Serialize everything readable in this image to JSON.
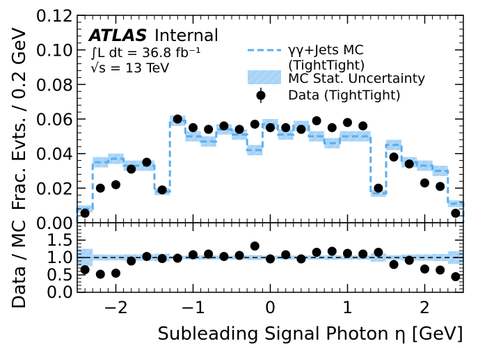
{
  "chart_data": [
    {
      "type": "line",
      "name": "main",
      "xlim": [
        -2.5,
        2.5
      ],
      "ylim": [
        0,
        0.12
      ],
      "yticks": [
        "0.00",
        "0.02",
        "0.04",
        "0.06",
        "0.08",
        "0.10",
        "0.12"
      ],
      "ylabel": "Frac. Evts. / 0.2 GeV",
      "atlas_label": "ATLAS",
      "atlas_sub": "Internal",
      "lumi_text": "∫L dt = 36.8 fb⁻¹",
      "energy_text": "√s = 13 TeV",
      "bin_edges": [
        -2.5,
        -2.3,
        -2.1,
        -1.9,
        -1.7,
        -1.5,
        -1.3,
        -1.1,
        -0.9,
        -0.7,
        -0.5,
        -0.3,
        -0.1,
        0.1,
        0.3,
        0.5,
        0.7,
        0.9,
        1.1,
        1.3,
        1.5,
        1.7,
        1.9,
        2.1,
        2.3,
        2.5
      ],
      "series": [
        {
          "name": "γγ+Jets MC\n(TightTight)",
          "kind": "step",
          "color": "#5aaeee",
          "values": [
            0.008,
            0.035,
            0.037,
            0.033,
            0.033,
            0.018,
            0.059,
            0.05,
            0.047,
            0.054,
            0.051,
            0.042,
            0.057,
            0.051,
            0.056,
            0.05,
            0.046,
            0.05,
            0.05,
            0.017,
            0.045,
            0.035,
            0.033,
            0.03,
            0.011
          ],
          "stat_unc": [
            0.002,
            0.003,
            0.003,
            0.003,
            0.003,
            0.002,
            0.003,
            0.003,
            0.003,
            0.003,
            0.003,
            0.003,
            0.003,
            0.003,
            0.003,
            0.003,
            0.003,
            0.003,
            0.003,
            0.002,
            0.003,
            0.003,
            0.003,
            0.003,
            0.002
          ]
        },
        {
          "name": "MC Stat. Uncertainty",
          "kind": "band",
          "color": "#a7d3f7"
        },
        {
          "name": "Data (TightTight)",
          "kind": "points",
          "color": "#000000",
          "values": [
            0.0055,
            0.02,
            0.022,
            0.031,
            0.035,
            0.019,
            0.06,
            0.055,
            0.054,
            0.056,
            0.054,
            0.057,
            0.055,
            0.055,
            0.054,
            0.059,
            0.055,
            0.058,
            0.056,
            0.02,
            0.038,
            0.034,
            0.023,
            0.021,
            0.0055
          ]
        }
      ]
    },
    {
      "type": "scatter",
      "name": "ratio",
      "xlim": [
        -2.5,
        2.5
      ],
      "ylim": [
        0,
        2.0
      ],
      "xticks": [
        "−2",
        "−1",
        "0",
        "1",
        "2"
      ],
      "xtick_values": [
        -2,
        -1,
        0,
        1,
        2
      ],
      "yticks": [
        "0.0",
        "0.5",
        "1.0",
        "1.5"
      ],
      "ytick_values": [
        0,
        0.5,
        1.0,
        1.5
      ],
      "ylabel": "Data / MC",
      "xlabel": "Subleading Signal Photon η [GeV]",
      "reference_line": 1.0,
      "values": [
        0.65,
        0.52,
        0.55,
        0.9,
        1.03,
        0.97,
        0.98,
        1.08,
        1.1,
        1.03,
        1.06,
        1.33,
        0.96,
        1.08,
        0.96,
        1.15,
        1.18,
        1.12,
        1.1,
        1.15,
        0.8,
        0.92,
        0.67,
        0.64,
        0.45
      ],
      "stat_unc": [
        0.2,
        0.09,
        0.08,
        0.08,
        0.08,
        0.1,
        0.05,
        0.06,
        0.06,
        0.06,
        0.06,
        0.07,
        0.06,
        0.06,
        0.06,
        0.06,
        0.06,
        0.06,
        0.06,
        0.1,
        0.07,
        0.08,
        0.09,
        0.1,
        0.2
      ]
    }
  ]
}
